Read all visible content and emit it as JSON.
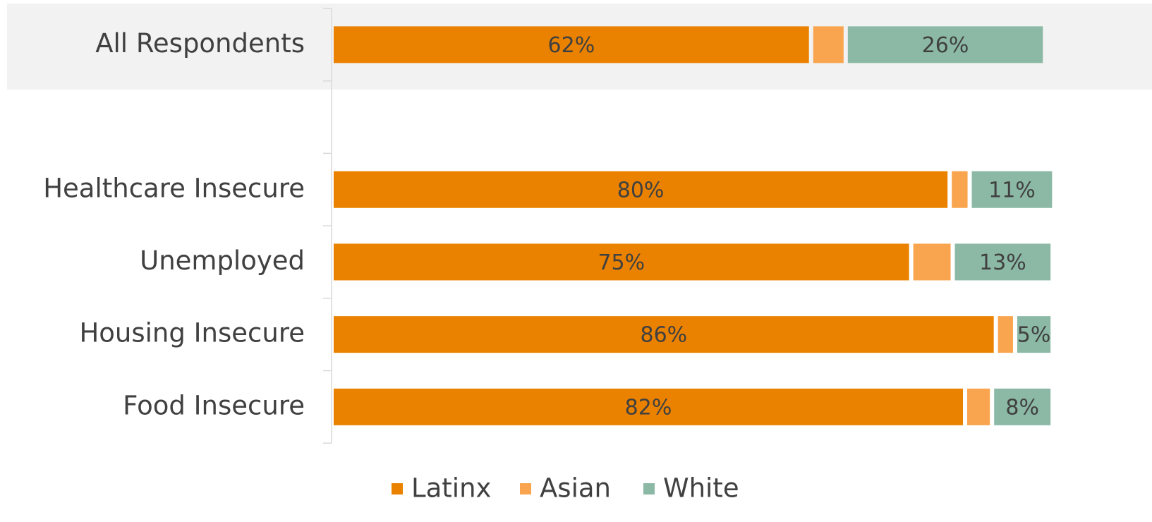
{
  "chart_data": {
    "type": "stacked-barh",
    "categories": [
      "All Respondents",
      null,
      "Healthcare Insecure",
      "Unemployed",
      "Housing Insecure",
      "Food Insecure"
    ],
    "series": [
      {
        "name": "Latinx",
        "color": "#ea8200",
        "values": [
          62,
          null,
          80,
          75,
          86,
          82
        ],
        "value_labels": [
          "62%",
          null,
          "80%",
          "75%",
          "86%",
          "82%"
        ]
      },
      {
        "name": "Asian",
        "color": "#f9a54f",
        "values": [
          4.5,
          null,
          2.6,
          5.4,
          2.5,
          3.5
        ]
      },
      {
        "name": "White",
        "color": "#8bb9a5",
        "values": [
          25.6,
          null,
          10.7,
          12.7,
          4.6,
          7.6
        ],
        "value_labels": [
          "26%",
          null,
          "11%",
          "13%",
          "5%",
          "8%"
        ]
      }
    ],
    "xlim": [
      0,
      94
    ],
    "legend": "bottom"
  }
}
